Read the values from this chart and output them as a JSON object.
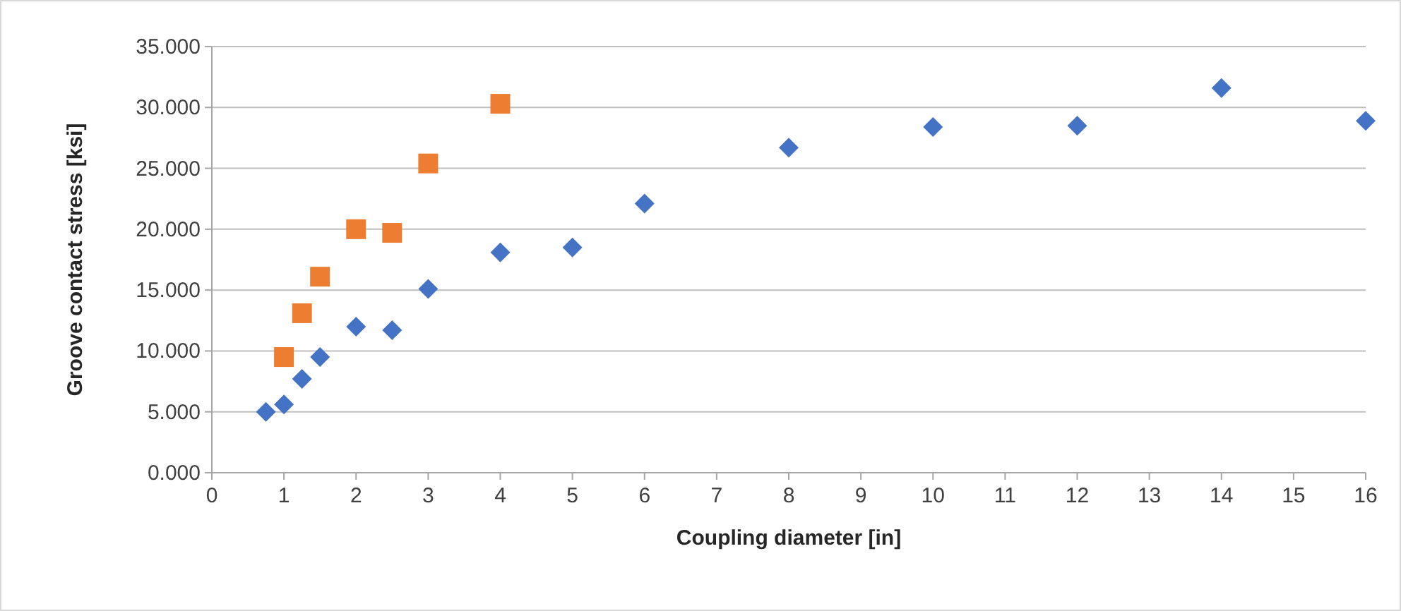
{
  "chart_data": {
    "type": "scatter",
    "xlabel": "Coupling diameter [in]",
    "ylabel": "Groove contact stress [ksi]",
    "xlim": [
      0,
      16
    ],
    "xticks": [
      0,
      1,
      2,
      3,
      4,
      5,
      6,
      7,
      8,
      9,
      10,
      11,
      12,
      13,
      14,
      15,
      16
    ],
    "ylim": [
      0,
      35
    ],
    "yticks": [
      {
        "value": 0,
        "label": "0.000"
      },
      {
        "value": 5,
        "label": "5.000"
      },
      {
        "value": 10,
        "label": "10.000"
      },
      {
        "value": 15,
        "label": "15.000"
      },
      {
        "value": 20,
        "label": "20.000"
      },
      {
        "value": 25,
        "label": "25.000"
      },
      {
        "value": 30,
        "label": "30.000"
      },
      {
        "value": 35,
        "label": "35.000"
      }
    ],
    "grid": "y",
    "series": [
      {
        "color": "#4472c4",
        "marker": "diamond",
        "x": [
          0.75,
          1,
          1.25,
          1.5,
          2,
          2.5,
          3,
          4,
          5,
          6,
          8,
          10,
          12,
          14,
          16
        ],
        "values": [
          5.0,
          5.6,
          7.7,
          9.5,
          12.0,
          11.7,
          15.1,
          18.1,
          18.5,
          22.1,
          26.7,
          28.4,
          28.5,
          31.6,
          28.9
        ]
      },
      {
        "color": "#ed7d31",
        "marker": "square",
        "x": [
          1,
          1.25,
          1.5,
          2,
          2.5,
          3,
          4
        ],
        "values": [
          9.5,
          13.1,
          16.1,
          20.0,
          19.7,
          25.4,
          30.3
        ]
      }
    ]
  }
}
